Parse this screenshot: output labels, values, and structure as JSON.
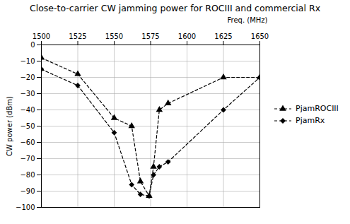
{
  "chart_data": {
    "type": "line",
    "title": "Close-to-carrier CW jamming power for ROCIII and commercial Rx",
    "xlabel": "Freq. (MHz)",
    "ylabel": "CW power (dBm)",
    "x": [
      1500,
      1525,
      1550,
      1562,
      1568,
      1574,
      1577,
      1581,
      1587,
      1625,
      1650
    ],
    "series": [
      {
        "name": "PjamROCIII",
        "color": "#000000",
        "marker": "triangle",
        "line_style": "dashed",
        "values": [
          -8,
          -18,
          -45,
          -50,
          -84,
          -93,
          -75,
          -40,
          -36,
          -20,
          -20
        ]
      },
      {
        "name": "PjamRx",
        "color": "#000000",
        "marker": "diamond",
        "line_style": "dashed",
        "values": [
          -15,
          -25,
          -54,
          -86,
          -92,
          -93,
          -80,
          -75,
          -72,
          -40,
          -20
        ]
      }
    ],
    "xlim": [
      1500,
      1650
    ],
    "ylim": [
      -100,
      0
    ],
    "xticks": [
      1500,
      1525,
      1550,
      1575,
      1600,
      1625,
      1650
    ],
    "yticks": [
      0,
      -10,
      -20,
      -30,
      -40,
      -50,
      -60,
      -70,
      -80,
      -90,
      -100
    ],
    "grid": true,
    "legend": "right"
  }
}
